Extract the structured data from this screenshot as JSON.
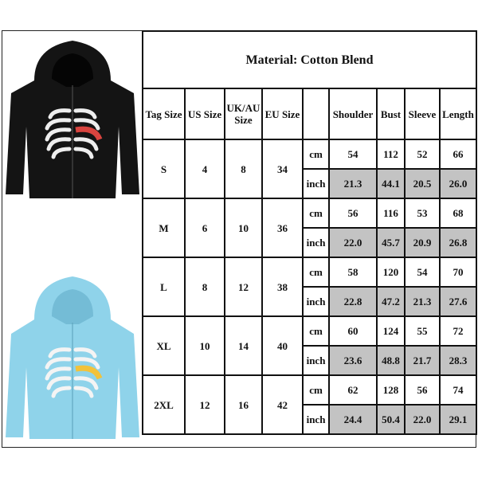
{
  "title": "Material: Cotton Blend",
  "headers": [
    "Tag Size",
    "US Size",
    "UK/AU Size",
    "EU Size",
    "",
    "Shoulder",
    "Bust",
    "Sleeve",
    "Length"
  ],
  "units": [
    "cm",
    "inch"
  ],
  "rows": [
    {
      "tag": "S",
      "us": "4",
      "uk": "8",
      "eu": "34",
      "cm": [
        "54",
        "112",
        "52",
        "66"
      ],
      "inch": [
        "21.3",
        "44.1",
        "20.5",
        "26.0"
      ]
    },
    {
      "tag": "M",
      "us": "6",
      "uk": "10",
      "eu": "36",
      "cm": [
        "56",
        "116",
        "53",
        "68"
      ],
      "inch": [
        "22.0",
        "45.7",
        "20.9",
        "26.8"
      ]
    },
    {
      "tag": "L",
      "us": "8",
      "uk": "12",
      "eu": "38",
      "cm": [
        "58",
        "120",
        "54",
        "70"
      ],
      "inch": [
        "22.8",
        "47.2",
        "21.3",
        "27.6"
      ]
    },
    {
      "tag": "XL",
      "us": "10",
      "uk": "14",
      "eu": "40",
      "cm": [
        "60",
        "124",
        "55",
        "72"
      ],
      "inch": [
        "23.6",
        "48.8",
        "21.7",
        "28.3"
      ]
    },
    {
      "tag": "2XL",
      "us": "12",
      "uk": "16",
      "eu": "42",
      "cm": [
        "62",
        "128",
        "56",
        "74"
      ],
      "inch": [
        "24.4",
        "50.4",
        "22.0",
        "29.1"
      ]
    }
  ],
  "colors": {
    "inch_cell": "#c3c3c3",
    "hoodie_black": "#141414",
    "hoodie_blue": "#8fd3ea",
    "heart_red": "#d9443f",
    "heart_yellow": "#f2c23a"
  }
}
